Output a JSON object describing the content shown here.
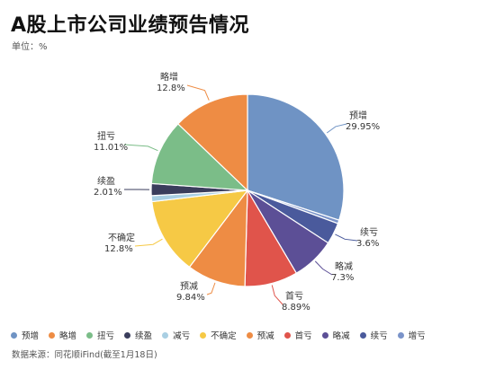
{
  "header": {
    "title": "A股上市公司业绩预告情况",
    "unit": "单位：%"
  },
  "footer": {
    "source": "数据来源：同花顺iFind(截至1月18日)"
  },
  "chart_data": {
    "type": "pie",
    "title": "A股上市公司业绩预告情况",
    "unit": "%",
    "slices": [
      {
        "name": "预增",
        "value": 29.95,
        "label": "29.95%",
        "color": "#6f93c4"
      },
      {
        "name": "增亏",
        "value": 0.59,
        "label": "",
        "color": "#7a93c9"
      },
      {
        "name": "续亏",
        "value": 3.6,
        "label": "3.6%",
        "color": "#4a5a9c"
      },
      {
        "name": "略减",
        "value": 7.3,
        "label": "7.3%",
        "color": "#5c4f96"
      },
      {
        "name": "首亏",
        "value": 8.89,
        "label": "8.89%",
        "color": "#e0544b"
      },
      {
        "name": "预减",
        "value": 9.84,
        "label": "9.84%",
        "color": "#ee8c44"
      },
      {
        "name": "不确定",
        "value": 12.8,
        "label": "12.8%",
        "color": "#f6c945"
      },
      {
        "name": "减亏",
        "value": 1.0,
        "label": "",
        "color": "#a9cfe3"
      },
      {
        "name": "续盈",
        "value": 2.01,
        "label": "2.01%",
        "color": "#3a3d5c"
      },
      {
        "name": "扭亏",
        "value": 11.01,
        "label": "11.01%",
        "color": "#7bbd88"
      },
      {
        "name": "略增",
        "value": 12.8,
        "label": "12.8%",
        "color": "#ee8c44"
      }
    ],
    "legend": [
      {
        "name": "预增",
        "color": "#6f93c4"
      },
      {
        "name": "略增",
        "color": "#ee8c44"
      },
      {
        "name": "扭亏",
        "color": "#7bbd88"
      },
      {
        "name": "续盈",
        "color": "#3a3d5c"
      },
      {
        "name": "减亏",
        "color": "#a9cfe3"
      },
      {
        "name": "不确定",
        "color": "#f6c945"
      },
      {
        "name": "预减",
        "color": "#ee8c44"
      },
      {
        "name": "首亏",
        "color": "#e0544b"
      },
      {
        "name": "略减",
        "color": "#5c4f96"
      },
      {
        "name": "续亏",
        "color": "#4a5a9c"
      },
      {
        "name": "增亏",
        "color": "#7a93c9"
      }
    ],
    "legend_position": "bottom"
  }
}
